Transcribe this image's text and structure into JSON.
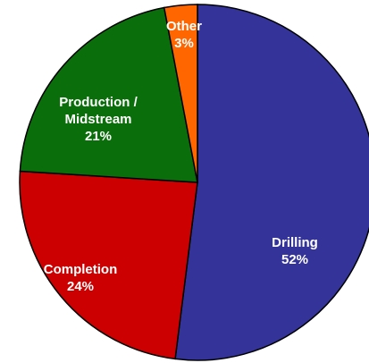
{
  "chart_data": {
    "type": "pie",
    "categories": [
      "Drilling",
      "Completion",
      "Production / Midstream",
      "Other"
    ],
    "values": [
      52,
      24,
      21,
      3
    ],
    "value_labels": [
      "52%",
      "24%",
      "21%",
      "3%"
    ],
    "colors": [
      "#333399",
      "#cc0000",
      "#0a6e0a",
      "#ff6600"
    ]
  }
}
